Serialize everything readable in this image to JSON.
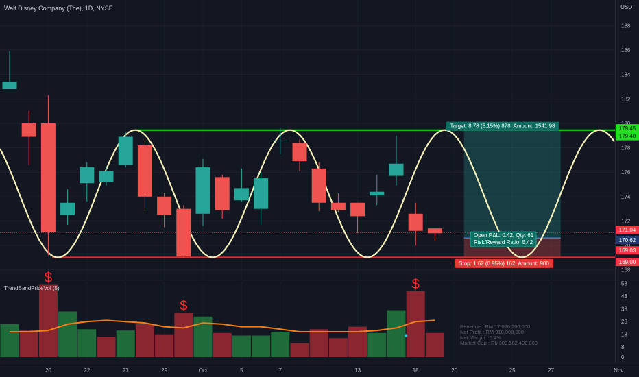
{
  "header": {
    "title": "Walt Disney Company (The), 1D, NYSE"
  },
  "currency": "USD",
  "price_axis": {
    "ticks": [
      168,
      170,
      172,
      174,
      176,
      178,
      180,
      182,
      184,
      186,
      188
    ],
    "ylim": [
      167.2,
      190.1
    ]
  },
  "volume_axis": {
    "ticks": [
      "0",
      "8",
      "18",
      "28",
      "38",
      "48",
      "58"
    ],
    "ylim": [
      0,
      60
    ]
  },
  "time_axis": {
    "labels": [
      "20",
      "22",
      "27",
      "29",
      "Oct",
      "5",
      "7",
      "13",
      "18",
      "20",
      "25",
      "27",
      "Nov"
    ]
  },
  "price_labels": [
    {
      "text": "179.45",
      "value": 179.45,
      "color": "#22dd22",
      "text_color": "#000000"
    },
    {
      "text": "179.40",
      "value": 179.4,
      "color": "#22dd22",
      "text_color": "#000000"
    },
    {
      "text": "171.04",
      "value": 171.04,
      "color": "#f23645",
      "text_color": "#ffffff"
    },
    {
      "text": "170.62",
      "value": 170.62,
      "color": "#1e3a6e",
      "text_color": "#ffffff"
    },
    {
      "text": "169.03",
      "value": 169.03,
      "color": "#f23645",
      "text_color": "#ffffff"
    },
    {
      "text": "169.00",
      "value": 169.0,
      "color": "#f23645",
      "text_color": "#ffffff"
    }
  ],
  "position": {
    "target_label": "Target: 8.78 (5.15%) 878, Amount: 1541.98",
    "stop_label": "Stop: 1.62 (0.95%) 162, Amount: 900",
    "pnl_line1": "Open P&L: 0.42, Qty: 61",
    "pnl_line2": "Risk/Reward Ratio: 5.42",
    "entry": 170.62,
    "target": 179.4,
    "stop": 169.0
  },
  "levels": {
    "resistance": 179.45,
    "support": 169.03,
    "last_price": 171.04
  },
  "indicator": {
    "name": "TrendBandPriceVol (5)",
    "info": [
      "Revenue : RM 17,026,200,000",
      "Net Profit : RM 918,000,000",
      "Net Margin : 5.4%",
      "Market Cap : RM309,582,400,000"
    ],
    "signal_symbol": "$"
  },
  "colors": {
    "up": "#26a69a",
    "down": "#ef5350",
    "sine": "#f5f0b8",
    "level_green": "#22ee22",
    "level_red": "#ff2222",
    "vol_up": "#1f6b3a",
    "vol_down": "#8a2630",
    "ma": "#f57f17"
  },
  "chart_data": {
    "type": "candlestick",
    "title": "Walt Disney Company (The), 1D, NYSE",
    "candles": [
      {
        "o": 182.8,
        "h": 185.9,
        "l": 182.8,
        "c": 183.4
      },
      {
        "o": 180.0,
        "h": 181.0,
        "l": 176.6,
        "c": 178.9
      },
      {
        "o": 180.0,
        "h": 182.3,
        "l": 169.2,
        "c": 171.1
      },
      {
        "o": 172.5,
        "h": 174.6,
        "l": 171.7,
        "c": 173.5
      },
      {
        "o": 175.1,
        "h": 176.8,
        "l": 173.6,
        "c": 176.4
      },
      {
        "o": 175.2,
        "h": 176.5,
        "l": 174.9,
        "c": 176.1
      },
      {
        "o": 176.6,
        "h": 179.3,
        "l": 176.4,
        "c": 178.9
      },
      {
        "o": 178.2,
        "h": 178.7,
        "l": 172.8,
        "c": 174.0
      },
      {
        "o": 174.0,
        "h": 174.3,
        "l": 171.5,
        "c": 172.5
      },
      {
        "o": 173.0,
        "h": 173.3,
        "l": 169.0,
        "c": 169.1
      },
      {
        "o": 172.6,
        "h": 177.1,
        "l": 171.6,
        "c": 176.4
      },
      {
        "o": 175.6,
        "h": 175.8,
        "l": 172.2,
        "c": 172.9
      },
      {
        "o": 173.7,
        "h": 176.3,
        "l": 173.6,
        "c": 174.7
      },
      {
        "o": 173.0,
        "h": 176.0,
        "l": 171.7,
        "c": 175.5
      },
      {
        "o": 178.6,
        "h": 179.6,
        "l": 177.5,
        "c": 178.6
      },
      {
        "o": 178.4,
        "h": 178.7,
        "l": 176.1,
        "c": 176.9
      },
      {
        "o": 176.3,
        "h": 176.8,
        "l": 172.8,
        "c": 173.5
      },
      {
        "o": 173.5,
        "h": 174.3,
        "l": 172.7,
        "c": 172.9
      },
      {
        "o": 173.5,
        "h": 173.5,
        "l": 171.0,
        "c": 172.4
      },
      {
        "o": 174.1,
        "h": 175.8,
        "l": 173.3,
        "c": 174.4
      },
      {
        "o": 175.7,
        "h": 179.0,
        "l": 174.9,
        "c": 176.7
      },
      {
        "o": 172.6,
        "h": 173.5,
        "l": 170.0,
        "c": 171.2
      },
      {
        "o": 171.4,
        "h": 171.4,
        "l": 170.4,
        "c": 171.0
      }
    ],
    "volume": [
      {
        "v": 26,
        "dir": "up"
      },
      {
        "v": 21,
        "dir": "down"
      },
      {
        "v": 57,
        "dir": "down"
      },
      {
        "v": 36,
        "dir": "up"
      },
      {
        "v": 22,
        "dir": "up"
      },
      {
        "v": 16,
        "dir": "down"
      },
      {
        "v": 21,
        "dir": "up"
      },
      {
        "v": 26,
        "dir": "down"
      },
      {
        "v": 18,
        "dir": "down"
      },
      {
        "v": 35,
        "dir": "down"
      },
      {
        "v": 32,
        "dir": "up"
      },
      {
        "v": 19,
        "dir": "down"
      },
      {
        "v": 17,
        "dir": "up"
      },
      {
        "v": 17,
        "dir": "up"
      },
      {
        "v": 20,
        "dir": "up"
      },
      {
        "v": 11,
        "dir": "down"
      },
      {
        "v": 22,
        "dir": "down"
      },
      {
        "v": 15,
        "dir": "down"
      },
      {
        "v": 24,
        "dir": "down"
      },
      {
        "v": 19,
        "dir": "up"
      },
      {
        "v": 37,
        "dir": "up"
      },
      {
        "v": 52,
        "dir": "down"
      },
      {
        "v": 19,
        "dir": "down"
      }
    ],
    "volume_ma": [
      20,
      20,
      21,
      26,
      28,
      29,
      28,
      27,
      24,
      23,
      27,
      26,
      24,
      24,
      22,
      20,
      20,
      20,
      20,
      21,
      23,
      28,
      29
    ],
    "signals": [
      2,
      9,
      21
    ],
    "sine": {
      "min": 169.03,
      "max": 179.45,
      "peaks": [
        6.5,
        14.5,
        22.5,
        30.5
      ],
      "period": 8
    }
  }
}
